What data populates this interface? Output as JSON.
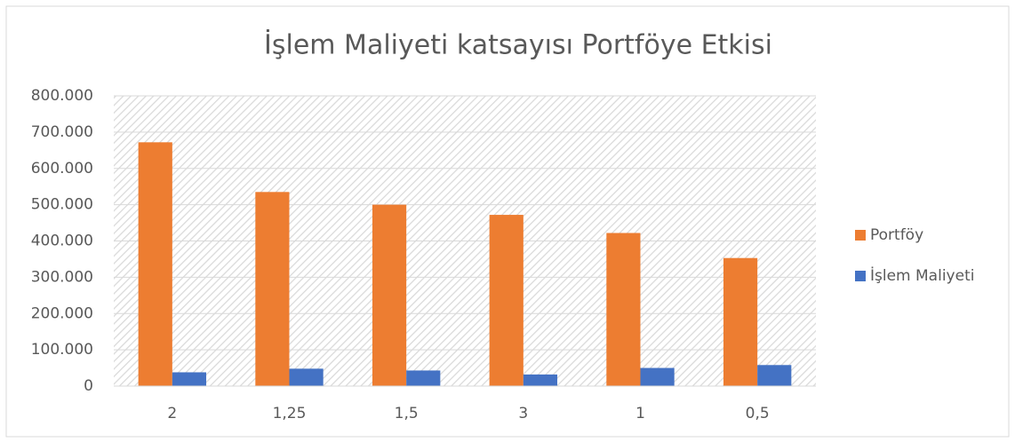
{
  "chart_data": {
    "type": "bar",
    "title": "İşlem Maliyeti katsayısı Portföye Etkisi",
    "categories": [
      "2",
      "1,25",
      "1,5",
      "3",
      "1",
      "0,5"
    ],
    "series": [
      {
        "name": "Portföy",
        "color": "#ed7d31",
        "values": [
          672000,
          535000,
          500000,
          472000,
          422000,
          353000
        ]
      },
      {
        "name": "İşlem Maliyeti",
        "color": "#4472c4",
        "values": [
          38000,
          48000,
          43000,
          32000,
          50000,
          58000
        ]
      }
    ],
    "ylim": [
      0,
      800000
    ],
    "yticks": [
      0,
      {
        "value": 100000,
        "label": "100.000"
      },
      {
        "value": 200000,
        "label": "200.000"
      },
      {
        "value": 300000,
        "label": "300.000"
      },
      {
        "value": 400000,
        "label": "400.000"
      },
      {
        "value": 500000,
        "label": "500.000"
      },
      {
        "value": 600000,
        "label": "600.000"
      },
      {
        "value": 700000,
        "label": "700.000"
      },
      {
        "value": 800000,
        "label": "800.000"
      }
    ],
    "grid": true,
    "legend": "right"
  }
}
